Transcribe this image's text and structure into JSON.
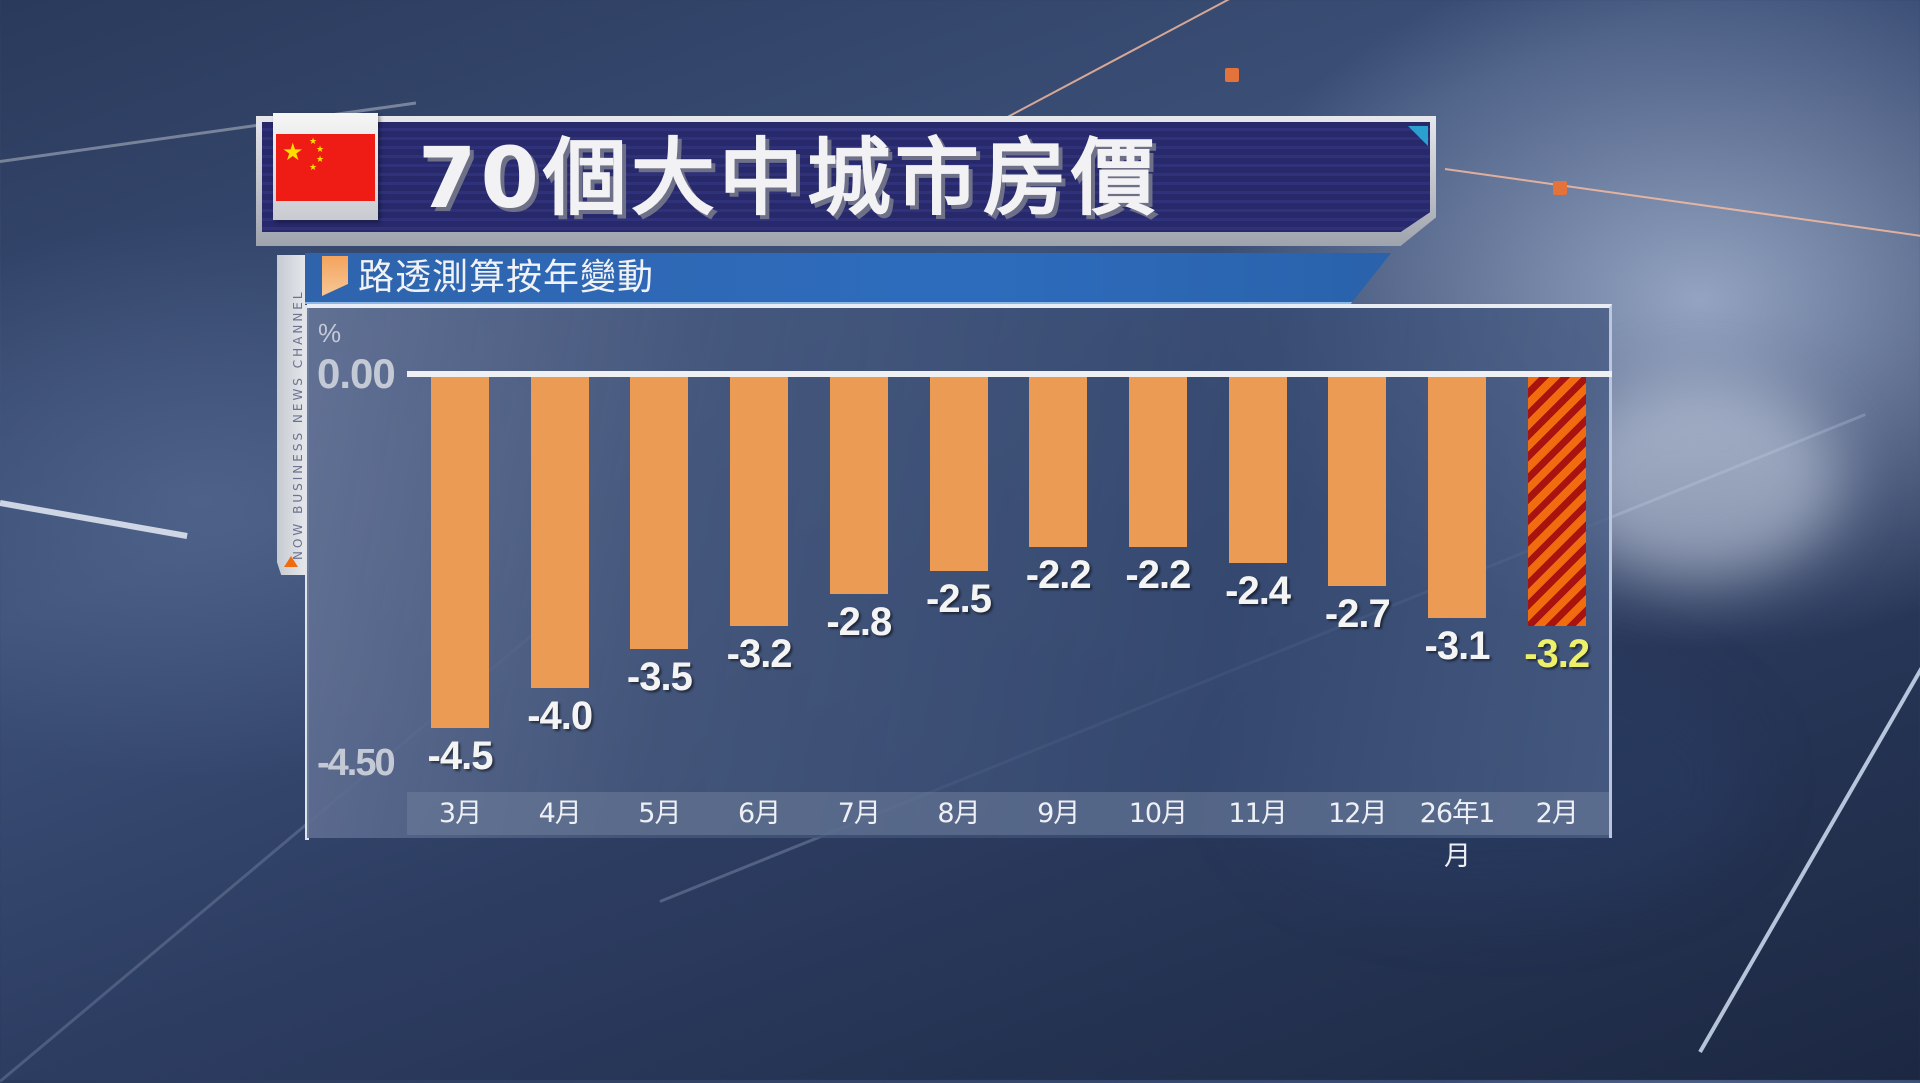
{
  "title": "70個大中城市房價",
  "subtitle": "路透測算按年變動",
  "side_strip": "NOW BUSINESS NEWS CHANNEL",
  "flag": "china-flag",
  "colors": {
    "bar": "#ec9b55",
    "highlight_stripe_a": "#f06c0e",
    "highlight_stripe_b": "#a8130f",
    "highlight_label": "#eef06a",
    "title_bg": "#27296a",
    "subtitle_bg": "#2d6cbd"
  },
  "axis": {
    "unit": "%",
    "ytick_top": "0.00",
    "ytick_bottom": "-4.50"
  },
  "bars": [
    {
      "label": "3月",
      "value": -4.5,
      "text": "-4.5"
    },
    {
      "label": "4月",
      "value": -4.0,
      "text": "-4.0"
    },
    {
      "label": "5月",
      "value": -3.5,
      "text": "-3.5"
    },
    {
      "label": "6月",
      "value": -3.2,
      "text": "-3.2"
    },
    {
      "label": "7月",
      "value": -2.8,
      "text": "-2.8"
    },
    {
      "label": "8月",
      "value": -2.5,
      "text": "-2.5"
    },
    {
      "label": "9月",
      "value": -2.2,
      "text": "-2.2"
    },
    {
      "label": "10月",
      "value": -2.2,
      "text": "-2.2"
    },
    {
      "label": "11月",
      "value": -2.4,
      "text": "-2.4"
    },
    {
      "label": "12月",
      "value": -2.7,
      "text": "-2.7"
    },
    {
      "label": "26年1月",
      "value": -3.1,
      "text": "-3.1"
    },
    {
      "label": "2月",
      "value": -3.2,
      "text": "-3.2",
      "highlight": true
    }
  ],
  "chart_data": {
    "type": "bar",
    "title": "70個大中城市房價",
    "subtitle": "路透測算按年變動",
    "categories": [
      "3月",
      "4月",
      "5月",
      "6月",
      "7月",
      "8月",
      "9月",
      "10月",
      "11月",
      "12月",
      "26年1月",
      "2月"
    ],
    "values": [
      -4.5,
      -4.0,
      -3.5,
      -3.2,
      -2.8,
      -2.5,
      -2.2,
      -2.2,
      -2.4,
      -2.7,
      -3.1,
      -3.2
    ],
    "xlabel": "",
    "ylabel": "%",
    "ylim": [
      -4.5,
      0
    ],
    "yticks": [
      "0.00",
      "-4.50"
    ],
    "grid": false,
    "legend": null,
    "highlighted_category": "2月",
    "data_labels": true
  }
}
